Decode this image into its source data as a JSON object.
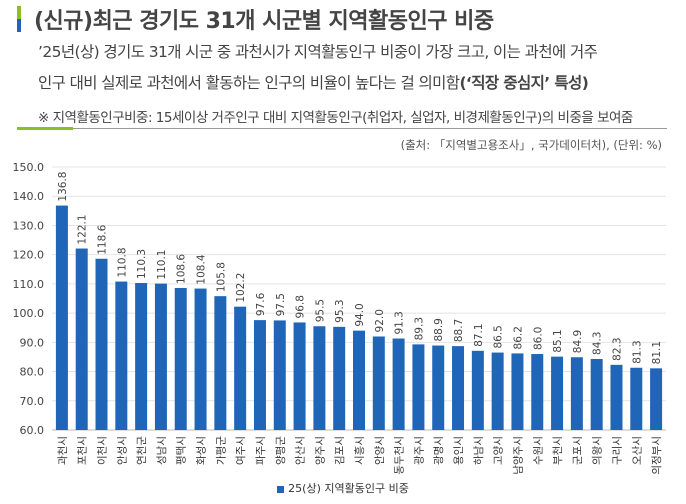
{
  "header": {
    "title": "(신규)최근 경기도 31개 시군별 지역활동인구 비중",
    "desc_line1": "’25년(상) 경기도 31개 시군 중 과천시가 지역활동인구 비중이 가장 크고, 이는 과천에 거주",
    "desc_line2": "인구 대비 실제로 과천에서 활동하는 인구의 비율이 높다는 걸 의미함",
    "desc_line2_bold": "(‘직장 중심지’ 특성)",
    "note": "※ 지역활동인구비중: 15세이상 거주인구 대비 지역활동인구(취업자, 실업자, 비경제활동인구)의 비중을 보여줌",
    "source": "(출처: 「지역별고용조사」, 국가데이터처), (단위: %)"
  },
  "colors": {
    "bar": "#1f66b8",
    "accent_green": "#8cbf26"
  },
  "chart_data": {
    "type": "bar",
    "categories": [
      "과천시",
      "포천시",
      "이천시",
      "안성시",
      "연천군",
      "성남시",
      "평택시",
      "화성시",
      "가평군",
      "여주시",
      "파주시",
      "양평군",
      "안산시",
      "양주시",
      "김포시",
      "시흥시",
      "안양시",
      "동두천시",
      "광주시",
      "광명시",
      "용인시",
      "하남시",
      "고양시",
      "남양주시",
      "수원시",
      "부천시",
      "군포시",
      "의왕시",
      "구리시",
      "오산시",
      "의정부시"
    ],
    "series": [
      {
        "name": "25(상) 지역활동인구 비중",
        "values": [
          136.8,
          122.1,
          118.6,
          110.8,
          110.3,
          110.1,
          108.6,
          108.4,
          105.8,
          102.2,
          97.6,
          97.5,
          96.8,
          95.5,
          95.3,
          94.0,
          92.0,
          91.3,
          89.3,
          88.9,
          88.7,
          87.1,
          86.5,
          86.2,
          86.0,
          85.1,
          84.9,
          84.3,
          82.3,
          81.3,
          81.1
        ]
      }
    ],
    "yticks": [
      "60.0",
      "70.0",
      "80.0",
      "90.0",
      "100.0",
      "110.0",
      "120.0",
      "130.0",
      "140.0",
      "150.0"
    ],
    "ylim": [
      60,
      150
    ],
    "grid": true,
    "legend": "bottom"
  }
}
